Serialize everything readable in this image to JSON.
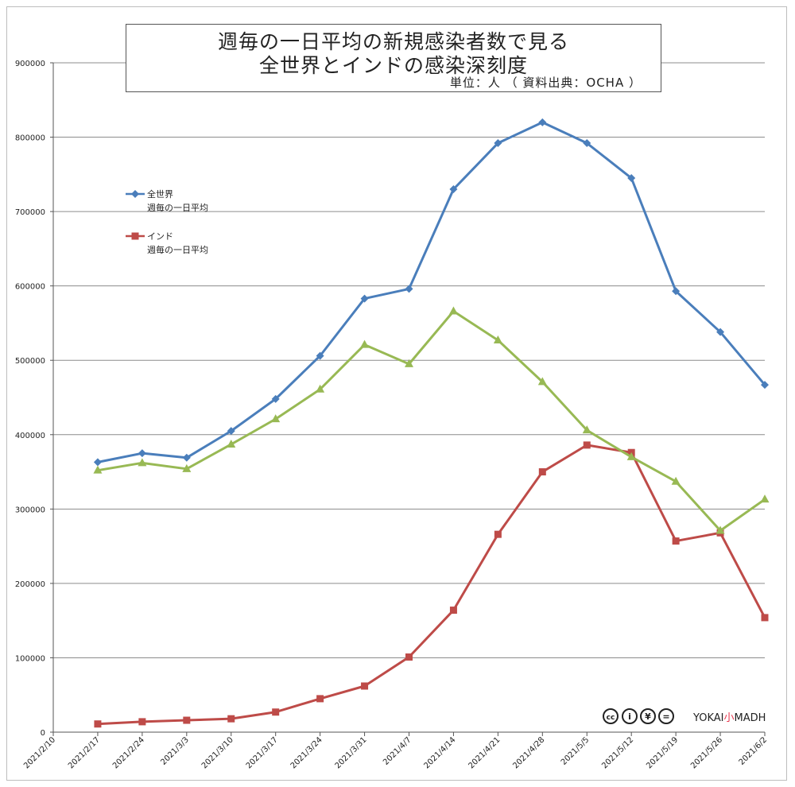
{
  "chart_data": {
    "type": "line",
    "title": "週毎の一日平均の新規感染者数で見る",
    "subtitle": "全世界とインドの感染深刻度",
    "unit_note": "単位：人 （ 資料出典：OCHA ）",
    "x": [
      "2021/2/10",
      "2021/2/17",
      "2021/2/24",
      "2021/3/3",
      "2021/3/10",
      "2021/3/17",
      "2021/3/24",
      "2021/3/31",
      "2021/4/7",
      "2021/4/14",
      "2021/4/21",
      "2021/4/28",
      "2021/5/5",
      "2021/5/12",
      "2021/5/19",
      "2021/5/26",
      "2021/6/2"
    ],
    "ylim": [
      0,
      900000
    ],
    "yticks": [
      0,
      100000,
      200000,
      300000,
      400000,
      500000,
      600000,
      700000,
      800000,
      900000
    ],
    "grid": true,
    "legend_position": "top-left",
    "series": [
      {
        "name": "全世界",
        "name_line2": "週毎の一日平均",
        "color": "#4a7ebb",
        "marker": "diamond",
        "values": [
          null,
          363000,
          375000,
          369000,
          405000,
          448000,
          506000,
          583000,
          596000,
          730000,
          792000,
          820000,
          792000,
          745000,
          593000,
          538000,
          467000
        ]
      },
      {
        "name": "インド",
        "name_line2": "週毎の一日平均",
        "color": "#be4b48",
        "marker": "square",
        "values": [
          null,
          11000,
          14000,
          16000,
          18000,
          27000,
          45000,
          62000,
          101000,
          164000,
          266000,
          350000,
          386000,
          376000,
          257000,
          268000,
          154000
        ]
      },
      {
        "name": "",
        "color": "#98b954",
        "marker": "triangle",
        "values": [
          null,
          352000,
          362000,
          354000,
          387000,
          421000,
          461000,
          521000,
          495000,
          566000,
          527000,
          471000,
          406000,
          370000,
          337000,
          271000,
          313000
        ]
      }
    ],
    "credit_text": "YOKAI",
    "credit_text_mid": "小",
    "credit_text_end": "MADH"
  },
  "license_icons": [
    "cc-icon",
    "by-icon",
    "nc-icon",
    "nd-icon"
  ],
  "license_icon_labels": [
    "cc",
    "i",
    "¥",
    "="
  ]
}
